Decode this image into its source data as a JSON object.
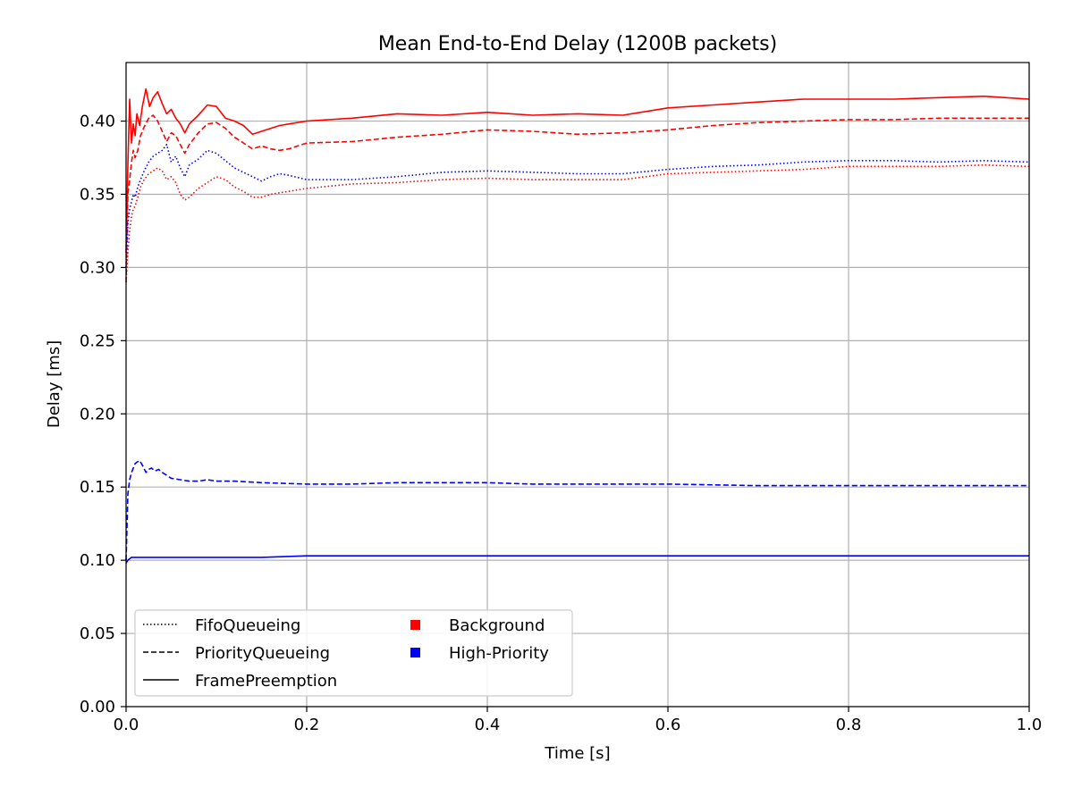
{
  "chart_data": {
    "type": "line",
    "title": "Mean End-to-End Delay (1200B packets)",
    "xlabel": "Time [s]",
    "ylabel": "Delay [ms]",
    "xlim": [
      0,
      1.0
    ],
    "ylim": [
      0,
      0.44
    ],
    "x_ticks": [
      "0.0",
      "0.2",
      "0.4",
      "0.6",
      "0.8",
      "1.0"
    ],
    "y_ticks": [
      "0.00",
      "0.05",
      "0.10",
      "0.15",
      "0.20",
      "0.25",
      "0.30",
      "0.35",
      "0.40"
    ],
    "grid": true,
    "legend_placement": "lower-left",
    "legend": {
      "styles": [
        {
          "label": "FifoQueueing",
          "dash": "dotted"
        },
        {
          "label": "PriorityQueueing",
          "dash": "dashed"
        },
        {
          "label": "FramePreemption",
          "dash": "solid"
        }
      ],
      "colors": [
        {
          "label": "Background",
          "color": "#ff0000"
        },
        {
          "label": "High-Priority",
          "color": "#0000ff"
        }
      ]
    },
    "series": [
      {
        "name": "FramePreemption / Background",
        "color": "#ff0000",
        "dash": "solid",
        "x": [
          0,
          0.002,
          0.004,
          0.006,
          0.008,
          0.01,
          0.012,
          0.015,
          0.018,
          0.022,
          0.026,
          0.03,
          0.035,
          0.04,
          0.045,
          0.05,
          0.055,
          0.06,
          0.065,
          0.07,
          0.08,
          0.09,
          0.1,
          0.11,
          0.12,
          0.13,
          0.14,
          0.15,
          0.16,
          0.17,
          0.18,
          0.2,
          0.25,
          0.3,
          0.35,
          0.4,
          0.45,
          0.5,
          0.55,
          0.6,
          0.65,
          0.7,
          0.75,
          0.8,
          0.85,
          0.9,
          0.95,
          1.0
        ],
        "y": [
          0.31,
          0.37,
          0.415,
          0.385,
          0.398,
          0.39,
          0.405,
          0.397,
          0.41,
          0.422,
          0.41,
          0.416,
          0.42,
          0.412,
          0.405,
          0.408,
          0.402,
          0.398,
          0.392,
          0.398,
          0.404,
          0.411,
          0.41,
          0.402,
          0.4,
          0.397,
          0.391,
          0.393,
          0.395,
          0.397,
          0.398,
          0.4,
          0.402,
          0.405,
          0.404,
          0.406,
          0.404,
          0.405,
          0.404,
          0.409,
          0.411,
          0.413,
          0.415,
          0.415,
          0.415,
          0.416,
          0.417,
          0.415
        ]
      },
      {
        "name": "PriorityQueueing / Background",
        "color": "#ff0000",
        "dash": "dashed",
        "x": [
          0,
          0.002,
          0.004,
          0.006,
          0.008,
          0.01,
          0.013,
          0.016,
          0.02,
          0.025,
          0.03,
          0.035,
          0.04,
          0.045,
          0.05,
          0.055,
          0.06,
          0.065,
          0.07,
          0.08,
          0.09,
          0.1,
          0.11,
          0.12,
          0.13,
          0.14,
          0.15,
          0.16,
          0.17,
          0.18,
          0.2,
          0.25,
          0.3,
          0.35,
          0.4,
          0.45,
          0.5,
          0.55,
          0.6,
          0.65,
          0.7,
          0.75,
          0.8,
          0.85,
          0.9,
          0.95,
          1.0
        ],
        "y": [
          0.29,
          0.35,
          0.36,
          0.372,
          0.38,
          0.375,
          0.38,
          0.39,
          0.396,
          0.402,
          0.404,
          0.4,
          0.393,
          0.386,
          0.392,
          0.39,
          0.384,
          0.378,
          0.384,
          0.392,
          0.398,
          0.399,
          0.395,
          0.389,
          0.385,
          0.381,
          0.383,
          0.381,
          0.38,
          0.381,
          0.385,
          0.386,
          0.389,
          0.391,
          0.394,
          0.393,
          0.391,
          0.392,
          0.394,
          0.397,
          0.399,
          0.4,
          0.401,
          0.401,
          0.402,
          0.402,
          0.402
        ]
      },
      {
        "name": "FifoQueueing / High-Priority",
        "color": "#0000ff",
        "dash": "dotted",
        "x": [
          0,
          0.002,
          0.004,
          0.006,
          0.008,
          0.01,
          0.013,
          0.016,
          0.02,
          0.025,
          0.03,
          0.035,
          0.04,
          0.045,
          0.05,
          0.055,
          0.06,
          0.065,
          0.07,
          0.08,
          0.09,
          0.1,
          0.11,
          0.12,
          0.13,
          0.14,
          0.15,
          0.16,
          0.17,
          0.18,
          0.2,
          0.25,
          0.3,
          0.35,
          0.4,
          0.45,
          0.5,
          0.55,
          0.6,
          0.65,
          0.7,
          0.75,
          0.8,
          0.85,
          0.9,
          0.95,
          1.0
        ],
        "y": [
          0.3,
          0.33,
          0.34,
          0.345,
          0.35,
          0.348,
          0.355,
          0.36,
          0.366,
          0.372,
          0.376,
          0.378,
          0.38,
          0.384,
          0.372,
          0.376,
          0.368,
          0.362,
          0.37,
          0.374,
          0.38,
          0.378,
          0.373,
          0.368,
          0.365,
          0.362,
          0.359,
          0.362,
          0.364,
          0.363,
          0.36,
          0.36,
          0.362,
          0.365,
          0.366,
          0.365,
          0.364,
          0.364,
          0.367,
          0.369,
          0.37,
          0.372,
          0.373,
          0.373,
          0.372,
          0.373,
          0.372
        ]
      },
      {
        "name": "FifoQueueing / Background",
        "color": "#ff0000",
        "dash": "dotted",
        "x": [
          0,
          0.002,
          0.004,
          0.006,
          0.008,
          0.01,
          0.013,
          0.016,
          0.02,
          0.025,
          0.03,
          0.035,
          0.04,
          0.045,
          0.05,
          0.055,
          0.06,
          0.065,
          0.07,
          0.08,
          0.09,
          0.1,
          0.11,
          0.12,
          0.13,
          0.14,
          0.15,
          0.16,
          0.17,
          0.18,
          0.2,
          0.25,
          0.3,
          0.35,
          0.4,
          0.45,
          0.5,
          0.55,
          0.6,
          0.65,
          0.7,
          0.75,
          0.8,
          0.85,
          0.9,
          0.95,
          1.0
        ],
        "y": [
          0.29,
          0.31,
          0.325,
          0.335,
          0.34,
          0.342,
          0.348,
          0.355,
          0.36,
          0.364,
          0.366,
          0.368,
          0.366,
          0.36,
          0.362,
          0.358,
          0.35,
          0.346,
          0.348,
          0.354,
          0.358,
          0.362,
          0.36,
          0.355,
          0.352,
          0.348,
          0.348,
          0.35,
          0.351,
          0.352,
          0.354,
          0.357,
          0.358,
          0.36,
          0.361,
          0.36,
          0.36,
          0.36,
          0.364,
          0.365,
          0.366,
          0.367,
          0.369,
          0.369,
          0.369,
          0.37,
          0.369
        ]
      },
      {
        "name": "PriorityQueueing / High-Priority",
        "color": "#0000ff",
        "dash": "dashed",
        "x": [
          0,
          0.002,
          0.004,
          0.006,
          0.008,
          0.01,
          0.012,
          0.015,
          0.018,
          0.022,
          0.025,
          0.028,
          0.032,
          0.036,
          0.04,
          0.045,
          0.05,
          0.06,
          0.07,
          0.08,
          0.09,
          0.1,
          0.12,
          0.15,
          0.2,
          0.25,
          0.3,
          0.35,
          0.4,
          0.45,
          0.5,
          0.6,
          0.7,
          0.8,
          0.9,
          1.0
        ],
        "y": [
          0.1,
          0.145,
          0.155,
          0.16,
          0.163,
          0.166,
          0.167,
          0.168,
          0.165,
          0.16,
          0.162,
          0.163,
          0.161,
          0.162,
          0.16,
          0.158,
          0.156,
          0.155,
          0.154,
          0.154,
          0.155,
          0.154,
          0.154,
          0.153,
          0.152,
          0.152,
          0.153,
          0.153,
          0.153,
          0.152,
          0.152,
          0.152,
          0.151,
          0.151,
          0.151,
          0.151
        ]
      },
      {
        "name": "FramePreemption / High-Priority",
        "color": "#0000ff",
        "dash": "solid",
        "x": [
          0,
          0.002,
          0.004,
          0.006,
          0.01,
          0.02,
          0.05,
          0.1,
          0.15,
          0.2,
          0.25,
          0.3,
          0.4,
          0.5,
          0.6,
          0.7,
          0.8,
          0.9,
          1.0
        ],
        "y": [
          0.098,
          0.1,
          0.101,
          0.102,
          0.102,
          0.102,
          0.102,
          0.102,
          0.102,
          0.103,
          0.103,
          0.103,
          0.103,
          0.103,
          0.103,
          0.103,
          0.103,
          0.103,
          0.103
        ]
      }
    ]
  }
}
